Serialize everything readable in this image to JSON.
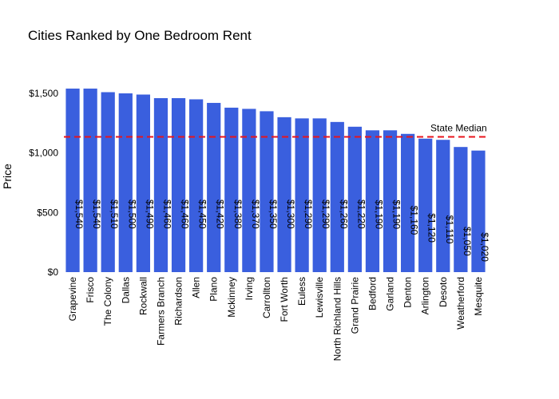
{
  "chart_data": {
    "type": "bar",
    "title": "Cities Ranked by One Bedroom Rent",
    "xlabel": "",
    "ylabel": "Price",
    "ylim": [
      0,
      1500
    ],
    "yticks": [
      0,
      500,
      1000,
      1500
    ],
    "ytick_labels": [
      "$0",
      "$500",
      "$1,000",
      "$1,500"
    ],
    "bar_color": "#3a5fde",
    "categories": [
      "Grapevine",
      "Frisco",
      "The Colony",
      "Dallas",
      "Rockwall",
      "Farmers Branch",
      "Richardson",
      "Allen",
      "Plano",
      "Mckinney",
      "Irving",
      "Carrollton",
      "Fort Worth",
      "Euless",
      "Lewisville",
      "North Richland Hills",
      "Grand Prairie",
      "Bedford",
      "Garland",
      "Denton",
      "Arlington",
      "Desoto",
      "Weatherford",
      "Mesquite"
    ],
    "values": [
      1540,
      1540,
      1510,
      1500,
      1490,
      1460,
      1460,
      1450,
      1420,
      1380,
      1370,
      1350,
      1300,
      1290,
      1290,
      1260,
      1220,
      1190,
      1190,
      1160,
      1120,
      1110,
      1050,
      1020
    ],
    "data_labels": [
      "$1,540",
      "$1,540",
      "$1,510",
      "$1,500",
      "$1,490",
      "$1,460",
      "$1,460",
      "$1,450",
      "$1,420",
      "$1,380",
      "$1,370",
      "$1,350",
      "$1,300",
      "$1,290",
      "$1,290",
      "$1,260",
      "$1,220",
      "$1,190",
      "$1,190",
      "$1,160",
      "$1,120",
      "$1,110",
      "$1,050",
      "$1,020"
    ],
    "reference_line": {
      "label": "State Median",
      "value": 1135,
      "color": "#e8141c",
      "style": "dashed"
    },
    "grid": false
  }
}
